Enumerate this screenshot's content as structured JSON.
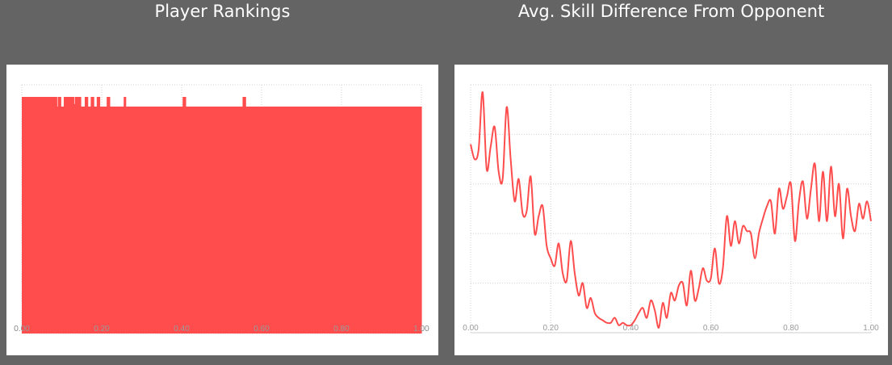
{
  "colors": {
    "background": "#646464",
    "panel": "#ffffff",
    "series": "#ff4d4d"
  },
  "chart_data": [
    {
      "type": "bar",
      "title": "Player Rankings",
      "xlim": [
        0,
        1
      ],
      "ylim": [
        0,
        1
      ],
      "xticks": [
        "0.00",
        "0.20",
        "0.40",
        "0.60",
        "0.80",
        "1.00"
      ],
      "grid": true,
      "values": [
        0.98,
        0.98,
        0.98,
        0.98,
        0.98,
        0.98,
        0.98,
        0.98,
        0.98,
        0.98,
        0.98,
        0.98,
        0.98,
        0.98,
        0.98,
        0.98,
        0.98,
        0.98,
        0.98,
        0.98,
        0.98,
        0.98,
        0.98,
        0.98,
        0.98,
        0.98,
        0.98,
        0.98,
        0.98,
        0.98,
        0.98,
        0.98,
        0.98,
        0.98,
        0.98,
        0.94,
        0.98,
        0.98,
        0.98,
        0.94,
        0.94,
        0.94,
        0.98,
        0.98,
        0.98,
        0.98,
        0.98,
        0.98,
        0.98,
        0.98,
        0.98,
        0.98,
        0.95,
        0.98,
        0.98,
        0.98,
        0.98,
        0.98,
        0.98,
        0.94,
        0.94,
        0.94,
        0.94,
        0.98,
        0.98,
        0.98,
        0.94,
        0.94,
        0.94,
        0.98,
        0.98,
        0.98,
        0.94,
        0.94,
        0.94,
        0.98,
        0.98,
        0.98,
        0.94,
        0.94,
        0.94,
        0.94,
        0.94,
        0.94,
        0.94,
        0.98,
        0.98,
        0.98,
        0.94,
        0.94,
        0.94,
        0.94,
        0.94,
        0.94,
        0.94,
        0.94,
        0.94,
        0.94,
        0.94,
        0.94,
        0.94,
        0.94,
        0.98,
        0.98,
        0.94,
        0.94,
        0.94,
        0.94,
        0.94,
        0.94,
        0.94,
        0.94,
        0.94,
        0.94,
        0.94,
        0.94,
        0.94,
        0.94,
        0.94,
        0.94,
        0.94,
        0.94,
        0.94,
        0.94,
        0.94,
        0.94,
        0.94,
        0.94,
        0.94,
        0.94,
        0.94,
        0.94,
        0.94,
        0.94,
        0.94,
        0.94,
        0.94,
        0.94,
        0.94,
        0.94,
        0.94,
        0.94,
        0.94,
        0.94,
        0.94,
        0.94,
        0.94,
        0.94,
        0.94,
        0.94,
        0.94,
        0.94,
        0.94,
        0.94,
        0.94,
        0.94,
        0.94,
        0.94,
        0.94,
        0.94,
        0.94,
        0.98,
        0.98,
        0.98,
        0.94,
        0.94,
        0.94,
        0.94,
        0.94,
        0.94,
        0.94,
        0.94,
        0.94,
        0.94,
        0.94,
        0.94,
        0.94,
        0.94,
        0.94,
        0.94,
        0.94,
        0.94,
        0.94,
        0.94,
        0.94,
        0.94,
        0.94,
        0.94,
        0.94,
        0.94,
        0.94,
        0.94,
        0.94,
        0.94,
        0.94,
        0.94,
        0.94,
        0.94,
        0.94,
        0.94,
        0.94,
        0.94,
        0.94,
        0.94,
        0.94,
        0.94,
        0.94,
        0.94,
        0.94,
        0.94,
        0.94,
        0.94,
        0.94,
        0.94,
        0.94,
        0.94,
        0.94,
        0.94,
        0.94,
        0.94,
        0.94,
        0.98,
        0.98,
        0.98,
        0.94,
        0.94,
        0.94,
        0.94,
        0.94,
        0.94,
        0.94,
        0.94,
        0.94,
        0.94,
        0.94,
        0.94,
        0.94,
        0.94,
        0.94,
        0.94,
        0.94,
        0.94,
        0.94,
        0.94,
        0.94,
        0.94,
        0.94,
        0.94,
        0.94,
        0.94,
        0.94,
        0.94,
        0.94,
        0.94,
        0.94,
        0.94,
        0.94,
        0.94,
        0.94,
        0.94,
        0.94,
        0.94,
        0.94,
        0.94,
        0.94,
        0.94,
        0.94,
        0.94,
        0.94,
        0.94,
        0.94,
        0.94,
        0.94,
        0.94,
        0.94,
        0.94,
        0.94,
        0.94,
        0.94,
        0.94,
        0.94,
        0.94,
        0.94,
        0.94,
        0.94,
        0.94,
        0.94,
        0.94,
        0.94,
        0.94,
        0.94,
        0.94,
        0.94,
        0.94,
        0.94,
        0.94,
        0.94,
        0.94,
        0.94,
        0.94,
        0.94,
        0.94,
        0.94,
        0.94,
        0.94,
        0.94,
        0.94,
        0.94,
        0.94,
        0.94,
        0.94,
        0.94,
        0.94,
        0.94,
        0.94,
        0.94,
        0.94,
        0.94,
        0.94,
        0.94,
        0.94,
        0.94,
        0.94,
        0.94,
        0.94,
        0.94,
        0.94,
        0.94,
        0.94,
        0.94,
        0.94,
        0.94,
        0.94,
        0.94,
        0.94,
        0.94,
        0.94,
        0.94,
        0.94,
        0.94,
        0.94,
        0.94,
        0.94,
        0.94,
        0.94,
        0.94,
        0.94,
        0.94,
        0.94,
        0.94,
        0.94,
        0.94,
        0.94,
        0.94,
        0.94,
        0.94,
        0.94,
        0.94,
        0.94,
        0.94,
        0.94,
        0.94,
        0.94,
        0.94,
        0.94,
        0.94,
        0.94,
        0.94,
        0.94,
        0.94,
        0.94,
        0.94,
        0.94,
        0.94,
        0.94,
        0.94,
        0.94,
        0.94,
        0.94,
        0.94,
        0.94,
        0.94,
        0.94,
        0.94,
        0.94,
        0.94,
        0.94,
        0.94,
        0.94,
        0.94,
        0.94,
        0.94,
        0.94,
        0.94,
        0.94,
        0.94,
        0.94,
        0.94,
        0.94,
        0.94
      ]
    },
    {
      "type": "line",
      "title": "Avg. Skill Difference From Opponent",
      "xlim": [
        0,
        1
      ],
      "ylim": [
        0,
        1
      ],
      "xticks": [
        "0.00",
        "0.20",
        "0.40",
        "0.60",
        "0.80",
        "1.00"
      ],
      "grid": true,
      "x": [
        0.0,
        0.01,
        0.02,
        0.03,
        0.04,
        0.05,
        0.06,
        0.07,
        0.08,
        0.09,
        0.1,
        0.11,
        0.12,
        0.13,
        0.14,
        0.15,
        0.16,
        0.17,
        0.18,
        0.19,
        0.2,
        0.21,
        0.22,
        0.23,
        0.24,
        0.25,
        0.26,
        0.27,
        0.28,
        0.29,
        0.3,
        0.31,
        0.32,
        0.33,
        0.34,
        0.35,
        0.36,
        0.37,
        0.38,
        0.39,
        0.4,
        0.41,
        0.42,
        0.43,
        0.44,
        0.45,
        0.46,
        0.47,
        0.48,
        0.49,
        0.5,
        0.51,
        0.52,
        0.53,
        0.54,
        0.55,
        0.56,
        0.57,
        0.58,
        0.59,
        0.6,
        0.61,
        0.62,
        0.63,
        0.64,
        0.65,
        0.66,
        0.67,
        0.68,
        0.69,
        0.7,
        0.71,
        0.72,
        0.73,
        0.74,
        0.75,
        0.76,
        0.77,
        0.78,
        0.79,
        0.8,
        0.81,
        0.82,
        0.83,
        0.84,
        0.85,
        0.86,
        0.87,
        0.88,
        0.89,
        0.9,
        0.91,
        0.92,
        0.93,
        0.94,
        0.95,
        0.96,
        0.97,
        0.98,
        0.99,
        1.0
      ],
      "y": [
        0.76,
        0.7,
        0.74,
        0.97,
        0.66,
        0.75,
        0.83,
        0.65,
        0.62,
        0.91,
        0.7,
        0.53,
        0.62,
        0.48,
        0.49,
        0.63,
        0.4,
        0.47,
        0.51,
        0.35,
        0.3,
        0.27,
        0.36,
        0.24,
        0.21,
        0.37,
        0.24,
        0.15,
        0.2,
        0.1,
        0.14,
        0.08,
        0.06,
        0.05,
        0.04,
        0.04,
        0.06,
        0.03,
        0.04,
        0.03,
        0.03,
        0.05,
        0.08,
        0.1,
        0.06,
        0.13,
        0.09,
        0.02,
        0.12,
        0.06,
        0.16,
        0.13,
        0.19,
        0.2,
        0.11,
        0.25,
        0.13,
        0.18,
        0.26,
        0.21,
        0.22,
        0.34,
        0.2,
        0.26,
        0.47,
        0.35,
        0.45,
        0.36,
        0.43,
        0.41,
        0.4,
        0.3,
        0.4,
        0.46,
        0.51,
        0.53,
        0.4,
        0.58,
        0.5,
        0.55,
        0.6,
        0.37,
        0.53,
        0.61,
        0.46,
        0.58,
        0.68,
        0.45,
        0.65,
        0.45,
        0.67,
        0.47,
        0.6,
        0.38,
        0.58,
        0.47,
        0.41,
        0.52,
        0.46,
        0.53,
        0.45
      ]
    }
  ]
}
